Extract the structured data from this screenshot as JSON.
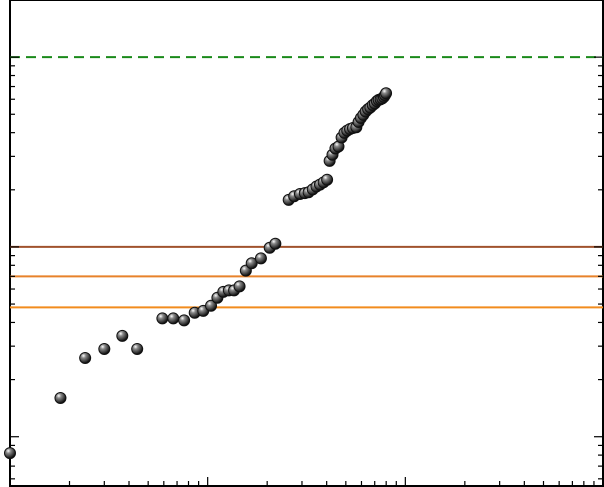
{
  "chart_data": {
    "type": "scatter",
    "title": "",
    "xlabel": "",
    "ylabel": "",
    "x_scale": "log",
    "y_scale": "log",
    "xlim": [
      1,
      1000
    ],
    "ylim": [
      0.55,
      200
    ],
    "grid": false,
    "legend": "none",
    "reference_lines": [
      {
        "y": 100,
        "style": "dashed",
        "color": "#1a8a1a"
      },
      {
        "y": 10,
        "style": "solid",
        "color": "#a0522d"
      },
      {
        "y": 7,
        "style": "solid",
        "color": "#e8822a"
      },
      {
        "y": 4.8,
        "style": "solid",
        "color": "#f28c1e"
      }
    ],
    "series": [
      {
        "marker_color": "#111111",
        "points": [
          [
            1.0,
            0.82
          ],
          [
            1.8,
            1.6
          ],
          [
            2.4,
            2.6
          ],
          [
            3.0,
            2.9
          ],
          [
            3.7,
            3.4
          ],
          [
            4.4,
            2.9
          ],
          [
            5.9,
            4.2
          ],
          [
            6.7,
            4.2
          ],
          [
            7.6,
            4.1
          ],
          [
            8.6,
            4.5
          ],
          [
            9.5,
            4.6
          ],
          [
            10.4,
            4.9
          ],
          [
            11.2,
            5.4
          ],
          [
            12.0,
            5.8
          ],
          [
            12.8,
            5.9
          ],
          [
            13.6,
            5.9
          ],
          [
            14.5,
            6.2
          ],
          [
            15.6,
            7.5
          ],
          [
            16.7,
            8.2
          ],
          [
            18.6,
            8.7
          ],
          [
            20.6,
            9.9
          ],
          [
            22.0,
            10.4
          ],
          [
            25.7,
            17.7
          ],
          [
            27.4,
            18.5
          ],
          [
            29.3,
            19.0
          ],
          [
            31.0,
            19.2
          ],
          [
            32.4,
            19.4
          ],
          [
            34.0,
            20.1
          ],
          [
            35.5,
            20.8
          ],
          [
            37.0,
            21.3
          ],
          [
            38.6,
            21.9
          ],
          [
            40.2,
            22.6
          ],
          [
            41.4,
            28.4
          ],
          [
            42.8,
            30.6
          ],
          [
            44.3,
            33.0
          ],
          [
            45.9,
            33.8
          ],
          [
            47.6,
            37.7
          ],
          [
            49.2,
            39.9
          ],
          [
            50.8,
            41.0
          ],
          [
            52.5,
            41.8
          ],
          [
            54.3,
            42.3
          ],
          [
            56.5,
            42.7
          ],
          [
            58.0,
            45.5
          ],
          [
            59.6,
            47.8
          ],
          [
            61.3,
            49.6
          ],
          [
            63.0,
            51.7
          ],
          [
            64.8,
            53.2
          ],
          [
            66.5,
            54.3
          ],
          [
            68.4,
            55.9
          ],
          [
            70.1,
            57.0
          ],
          [
            71.8,
            58.6
          ],
          [
            73.3,
            59.5
          ],
          [
            75.0,
            60.0
          ],
          [
            76.5,
            60.6
          ],
          [
            77.9,
            61.7
          ],
          [
            78.9,
            63.1
          ],
          [
            79.9,
            64.5
          ]
        ]
      }
    ]
  }
}
